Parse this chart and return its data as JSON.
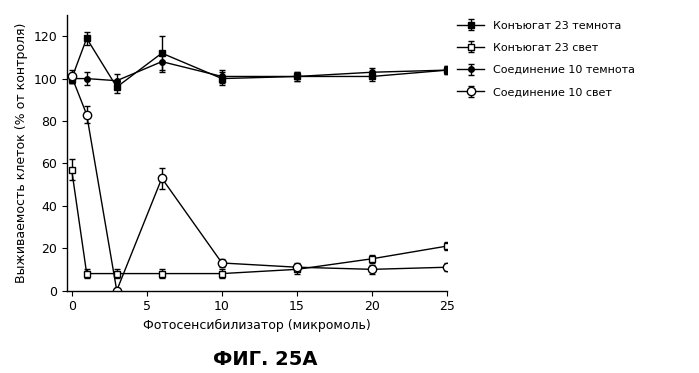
{
  "x_ticks": [
    0,
    5,
    10,
    15,
    20,
    25
  ],
  "ylim": [
    0,
    130
  ],
  "yticks": [
    0,
    20,
    40,
    60,
    80,
    100,
    120
  ],
  "xlim": [
    -0.3,
    25
  ],
  "conjugate23_dark_x": [
    0,
    1,
    3,
    6,
    10,
    15,
    20,
    25
  ],
  "conjugate23_dark_y": [
    100,
    119,
    96,
    112,
    100,
    101,
    101,
    104
  ],
  "conjugate23_dark_yerr": [
    2,
    3,
    3,
    8,
    3,
    2,
    2,
    2
  ],
  "conjugate23_light_x": [
    0,
    1,
    3,
    6,
    10,
    15,
    20,
    25
  ],
  "conjugate23_light_y": [
    57,
    8,
    8,
    8,
    8,
    10,
    15,
    21
  ],
  "conjugate23_light_yerr": [
    5,
    2,
    2,
    2,
    2,
    2,
    2,
    2
  ],
  "compound10_dark_x": [
    0,
    1,
    3,
    6,
    10,
    15,
    20,
    25
  ],
  "compound10_dark_y": [
    100,
    100,
    99,
    108,
    101,
    101,
    103,
    104
  ],
  "compound10_dark_yerr": [
    2,
    3,
    3,
    5,
    3,
    2,
    2,
    2
  ],
  "compound10_light_x": [
    0,
    1,
    3,
    6,
    10,
    15,
    20,
    25
  ],
  "compound10_light_y": [
    101,
    83,
    0,
    53,
    13,
    11,
    10,
    11
  ],
  "compound10_light_yerr": [
    3,
    4,
    1,
    5,
    2,
    2,
    2,
    2
  ],
  "xlabel": "Фотосенсибилизатор (микромоль)",
  "ylabel": "Выживаемость клеток (% от контроля)",
  "fig_label": "ФИГ. 25A",
  "legend_labels": [
    "Конъюгат 23 темнота",
    "Конъюгат 23 свет",
    "Соединение 10 темнота",
    "Соединение 10 свет"
  ],
  "line_color": "#000000",
  "background_color": "#ffffff",
  "fontsize_labels": 9,
  "fontsize_ticks": 9,
  "fontsize_fig_label": 14
}
